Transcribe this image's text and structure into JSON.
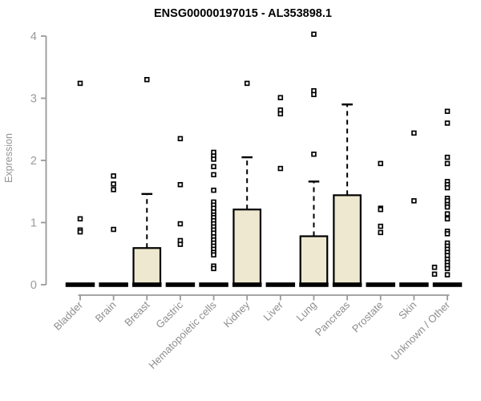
{
  "chart_data": {
    "type": "boxplot",
    "title": "ENSG00000197015 - AL353898.1",
    "ylabel": "Expression",
    "xlabel": "",
    "ylim": [
      0,
      4
    ],
    "yticks": [
      0,
      1,
      2,
      3,
      4
    ],
    "grid": false,
    "colors": {
      "box_fill": "#EEE8D0",
      "box_stroke": "#000000",
      "median": "#000000",
      "outlier_stroke": "#000000",
      "outlier_fill": "#ffffff",
      "axis": "#999999",
      "tick_label": "#9a9a9a",
      "title": "#000000"
    },
    "groups": [
      {
        "label": "Bladder",
        "median": 0,
        "q1": 0,
        "q3": 0,
        "whisker_high": 0,
        "outliers": [
          3.24,
          1.06,
          0.88,
          0.85
        ]
      },
      {
        "label": "Brain",
        "median": 0,
        "q1": 0,
        "q3": 0,
        "whisker_high": 0,
        "outliers": [
          1.75,
          1.62,
          1.53,
          0.89
        ]
      },
      {
        "label": "Breast",
        "median": 0,
        "q1": 0,
        "q3": 0.59,
        "whisker_high": 1.46,
        "outliers": [
          3.3
        ]
      },
      {
        "label": "Gastric",
        "median": 0,
        "q1": 0,
        "q3": 0,
        "whisker_high": 0,
        "outliers": [
          2.35,
          1.61,
          0.98,
          0.71,
          0.65
        ]
      },
      {
        "label": "Hematopoietic cells",
        "median": 0,
        "q1": 0,
        "q3": 0,
        "whisker_high": 0,
        "outliers": [
          2.13,
          2.07,
          2.02,
          1.9,
          1.77,
          1.52,
          1.33,
          1.28,
          1.23,
          1.17,
          1.12,
          1.08,
          1.03,
          0.98,
          0.93,
          0.88,
          0.83,
          0.77,
          0.72,
          0.67,
          0.62,
          0.57,
          0.52,
          0.48,
          0.3,
          0.26
        ]
      },
      {
        "label": "Kidney",
        "median": 0,
        "q1": 0,
        "q3": 1.21,
        "whisker_high": 2.05,
        "outliers": [
          3.24
        ]
      },
      {
        "label": "Liver",
        "median": 0,
        "q1": 0,
        "q3": 0,
        "whisker_high": 0,
        "outliers": [
          3.01,
          2.81,
          2.75,
          1.87
        ]
      },
      {
        "label": "Lung",
        "median": 0,
        "q1": 0,
        "q3": 0.78,
        "whisker_high": 1.66,
        "outliers": [
          4.03,
          3.12,
          3.06,
          2.1
        ]
      },
      {
        "label": "Pancreas",
        "median": 0,
        "q1": 0,
        "q3": 1.44,
        "whisker_high": 2.9,
        "outliers": []
      },
      {
        "label": "Prostate",
        "median": 0,
        "q1": 0,
        "q3": 0,
        "whisker_high": 0,
        "outliers": [
          1.95,
          1.23,
          1.21,
          0.94,
          0.84
        ]
      },
      {
        "label": "Skin",
        "median": 0,
        "q1": 0,
        "q3": 0,
        "whisker_high": 0,
        "outliers": [
          2.44,
          1.35
        ]
      },
      {
        "label": "Unknown / Other",
        "median": 0,
        "q1": 0,
        "q3": 0,
        "whisker_high": 0,
        "outliers": [
          2.79,
          2.6,
          2.05,
          1.95,
          1.66,
          1.61,
          1.56,
          1.39,
          1.35,
          1.29,
          1.25,
          1.14,
          1.06,
          0.86,
          0.82,
          0.67,
          0.62,
          0.57,
          0.52,
          0.47,
          0.41,
          0.36,
          0.31,
          0.26,
          0.16,
          [
            0.28,
            -16
          ],
          [
            0.17,
            -16
          ]
        ]
      }
    ]
  }
}
